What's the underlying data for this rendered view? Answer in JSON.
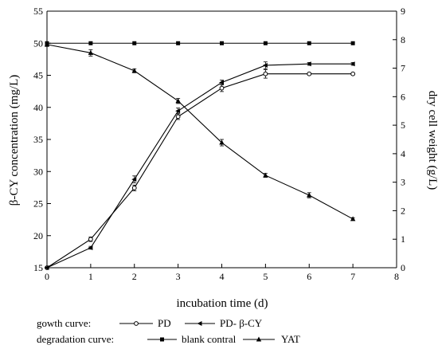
{
  "chart_data": {
    "type": "line",
    "xlabel": "incubation time (d)",
    "ylabel": "β-CY concentration (mg/L)",
    "y2label": "dry cell weight (g/L)",
    "xlim": [
      0,
      8
    ],
    "ylim": [
      15,
      55
    ],
    "y2lim": [
      0,
      9
    ],
    "xticks": [
      "0",
      "1",
      "2",
      "3",
      "4",
      "5",
      "6",
      "7",
      "8"
    ],
    "yticks": [
      "15",
      "20",
      "25",
      "30",
      "35",
      "40",
      "45",
      "50",
      "55"
    ],
    "y2ticks": [
      "0",
      "1",
      "2",
      "3",
      "4",
      "5",
      "6",
      "7",
      "8",
      "9"
    ],
    "grid": false,
    "legend_placement": "bottom",
    "legend": {
      "growth_label": "gowth curve:",
      "degradation_label": "degradation curve:"
    },
    "series": [
      {
        "name": "PD",
        "group": "growth",
        "axis": "right",
        "marker": "open-circle",
        "x": [
          0,
          1,
          2,
          3,
          4,
          5,
          6,
          7
        ],
        "y": [
          0,
          1.0,
          2.8,
          5.3,
          6.3,
          6.8,
          6.8,
          6.8
        ],
        "err": [
          0.03,
          0.08,
          0.1,
          0.1,
          0.12,
          0.15,
          0.03,
          0.03
        ]
      },
      {
        "name": "PD- β-CY",
        "group": "growth",
        "axis": "right",
        "marker": "filled-left-triangle",
        "x": [
          0,
          1,
          2,
          3,
          4,
          5,
          6,
          7
        ],
        "y": [
          0,
          0.7,
          3.1,
          5.5,
          6.5,
          7.1,
          7.15,
          7.15
        ],
        "err": [
          0.03,
          0.05,
          0.12,
          0.1,
          0.08,
          0.12,
          0.05,
          0.05
        ]
      },
      {
        "name": "blank contral",
        "group": "degradation",
        "axis": "left",
        "marker": "filled-square",
        "x": [
          0,
          1,
          2,
          3,
          4,
          5,
          6,
          7
        ],
        "y": [
          50,
          50,
          50,
          50,
          50,
          50,
          50,
          50
        ],
        "err": [
          0,
          0,
          0,
          0,
          0,
          0,
          0,
          0
        ]
      },
      {
        "name": "YAT",
        "group": "degradation",
        "axis": "left",
        "marker": "filled-triangle",
        "x": [
          0,
          1,
          2,
          3,
          4,
          5,
          6,
          7
        ],
        "y": [
          49.8,
          48.5,
          45.7,
          41.0,
          34.5,
          29.4,
          26.3,
          22.6
        ],
        "err": [
          0.3,
          0.5,
          0.3,
          0.4,
          0.5,
          0.3,
          0.4,
          0.2
        ]
      }
    ]
  }
}
